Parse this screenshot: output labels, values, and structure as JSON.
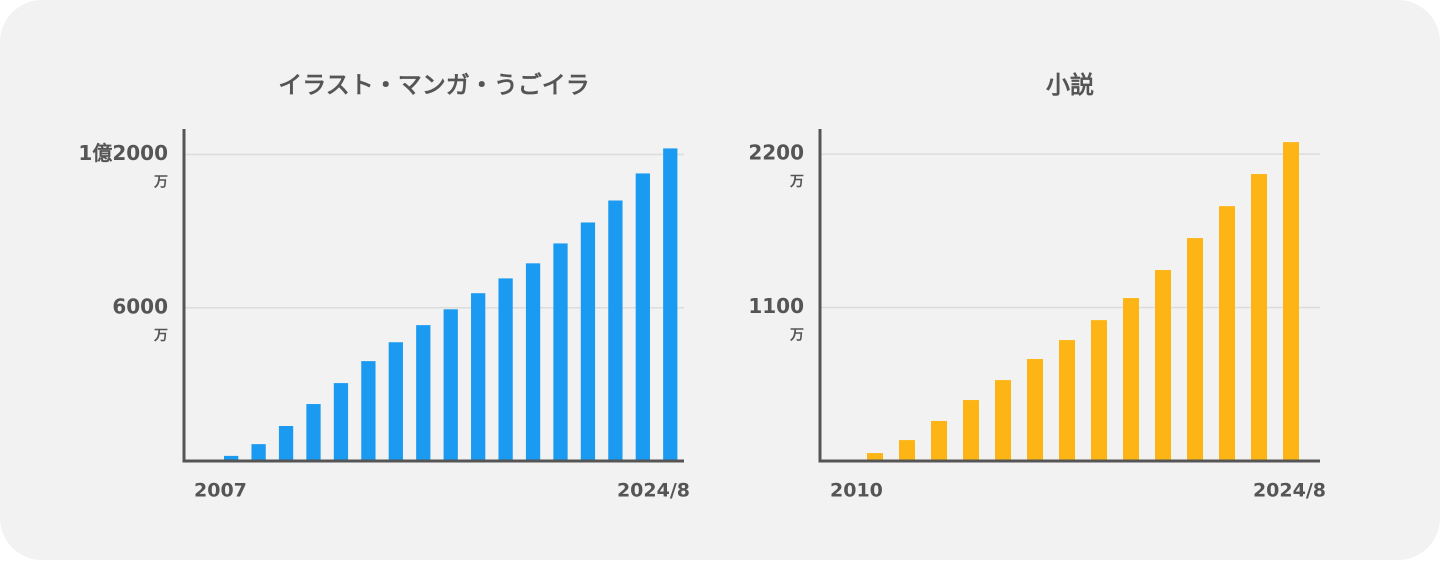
{
  "chart_data": [
    {
      "type": "bar",
      "title": "イラスト・マンガ・うごイラ",
      "color": "#1a9af0",
      "categories": [
        "2007",
        null,
        null,
        null,
        null,
        null,
        null,
        null,
        null,
        null,
        null,
        null,
        null,
        null,
        null,
        null,
        null,
        "2024/8"
      ],
      "values": [
        40,
        200,
        660,
        1370,
        2230,
        3050,
        3910,
        4650,
        5320,
        5940,
        6570,
        7150,
        7740,
        8520,
        9340,
        10200,
        11260,
        12240
      ],
      "ylim": [
        0,
        13000
      ],
      "yticks": [
        {
          "value": 6000,
          "label": "6000"
        },
        {
          "value": 12000,
          "label": "1億2000"
        }
      ],
      "unit": "万",
      "grid": true
    },
    {
      "type": "bar",
      "title": "小説",
      "color": "#fdb515",
      "categories": [
        "2010",
        null,
        null,
        null,
        null,
        null,
        null,
        null,
        null,
        null,
        null,
        null,
        null,
        null,
        "2024/8"
      ],
      "values": [
        7,
        57,
        150,
        287,
        437,
        580,
        731,
        867,
        1010,
        1168,
        1369,
        1598,
        1827,
        2057,
        2286
      ],
      "ylim": [
        0,
        2380
      ],
      "yticks": [
        {
          "value": 1100,
          "label": "1100"
        },
        {
          "value": 2200,
          "label": "2200"
        }
      ],
      "unit": "万",
      "grid": true
    }
  ]
}
